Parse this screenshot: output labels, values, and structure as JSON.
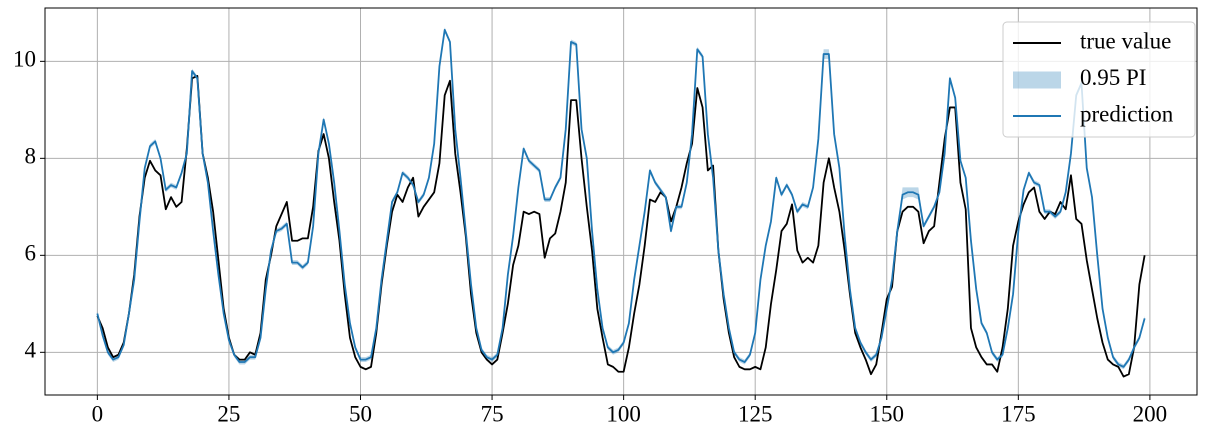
{
  "chart_data": {
    "type": "line",
    "x": [
      0,
      1,
      2,
      3,
      4,
      5,
      6,
      7,
      8,
      9,
      10,
      11,
      12,
      13,
      14,
      15,
      16,
      17,
      18,
      19,
      20,
      21,
      22,
      23,
      24,
      25,
      26,
      27,
      28,
      29,
      30,
      31,
      32,
      33,
      34,
      35,
      36,
      37,
      38,
      39,
      40,
      41,
      42,
      43,
      44,
      45,
      46,
      47,
      48,
      49,
      50,
      51,
      52,
      53,
      54,
      55,
      56,
      57,
      58,
      59,
      60,
      61,
      62,
      63,
      64,
      65,
      66,
      67,
      68,
      69,
      70,
      71,
      72,
      73,
      74,
      75,
      76,
      77,
      78,
      79,
      80,
      81,
      82,
      83,
      84,
      85,
      86,
      87,
      88,
      89,
      90,
      91,
      92,
      93,
      94,
      95,
      96,
      97,
      98,
      99,
      100,
      101,
      102,
      103,
      104,
      105,
      106,
      107,
      108,
      109,
      110,
      111,
      112,
      113,
      114,
      115,
      116,
      117,
      118,
      119,
      120,
      121,
      122,
      123,
      124,
      125,
      126,
      127,
      128,
      129,
      130,
      131,
      132,
      133,
      134,
      135,
      136,
      137,
      138,
      139,
      140,
      141,
      142,
      143,
      144,
      145,
      146,
      147,
      148,
      149,
      150,
      151,
      152,
      153,
      154,
      155,
      156,
      157,
      158,
      159,
      160,
      161,
      162,
      163,
      164,
      165,
      166,
      167,
      168,
      169,
      170,
      171,
      172,
      173,
      174,
      175,
      176,
      177,
      178,
      179,
      180,
      181,
      182,
      183,
      184,
      185,
      186,
      187,
      188,
      189,
      190,
      191,
      192,
      193,
      194,
      195,
      196,
      197,
      198,
      199
    ],
    "series": [
      {
        "name": "true value",
        "color": "#000000",
        "values": [
          4.75,
          4.5,
          4.1,
          3.9,
          3.95,
          4.2,
          4.8,
          5.6,
          6.8,
          7.6,
          7.95,
          7.75,
          7.65,
          6.95,
          7.2,
          7.0,
          7.1,
          8.2,
          9.65,
          9.7,
          8.1,
          7.6,
          6.9,
          5.9,
          4.9,
          4.3,
          3.95,
          3.85,
          3.85,
          4.0,
          3.95,
          4.4,
          5.5,
          6.0,
          6.6,
          6.85,
          7.1,
          6.3,
          6.3,
          6.35,
          6.35,
          7.0,
          8.15,
          8.5,
          8.0,
          7.1,
          6.3,
          5.2,
          4.3,
          3.9,
          3.7,
          3.65,
          3.7,
          4.4,
          5.4,
          6.2,
          6.9,
          7.25,
          7.1,
          7.4,
          7.6,
          6.8,
          7.0,
          7.15,
          7.3,
          7.9,
          9.3,
          9.6,
          8.1,
          7.3,
          6.4,
          5.2,
          4.4,
          4.0,
          3.85,
          3.75,
          3.85,
          4.4,
          5.0,
          5.8,
          6.2,
          6.9,
          6.85,
          6.9,
          6.85,
          5.95,
          6.35,
          6.45,
          6.9,
          7.5,
          9.2,
          9.2,
          8.0,
          7.0,
          6.1,
          4.9,
          4.3,
          3.75,
          3.7,
          3.6,
          3.6,
          4.1,
          4.8,
          5.4,
          6.2,
          7.15,
          7.1,
          7.3,
          7.2,
          6.7,
          7.0,
          7.4,
          7.9,
          8.3,
          9.45,
          9.05,
          7.75,
          7.85,
          6.1,
          5.1,
          4.4,
          3.9,
          3.7,
          3.65,
          3.65,
          3.7,
          3.65,
          4.1,
          5.0,
          5.7,
          6.5,
          6.65,
          7.05,
          6.1,
          5.85,
          5.95,
          5.85,
          6.2,
          7.5,
          8.0,
          7.4,
          6.9,
          6.1,
          5.2,
          4.4,
          4.1,
          3.85,
          3.55,
          3.75,
          4.4,
          5.1,
          5.35,
          6.5,
          6.9,
          7.0,
          7.0,
          6.9,
          6.25,
          6.5,
          6.6,
          7.5,
          8.4,
          9.05,
          9.05,
          7.5,
          6.95,
          4.5,
          4.1,
          3.9,
          3.75,
          3.75,
          3.6,
          4.1,
          4.9,
          6.2,
          6.7,
          7.05,
          7.3,
          7.4,
          6.9,
          6.75,
          6.9,
          6.85,
          7.1,
          6.95,
          7.65,
          6.75,
          6.65,
          5.9,
          5.3,
          4.7,
          4.2,
          3.85,
          3.75,
          3.7,
          3.5,
          3.55,
          4.1,
          5.4,
          6.0
        ]
      },
      {
        "name": "prediction",
        "color": "#1f77b4",
        "values": [
          4.8,
          4.35,
          4.0,
          3.85,
          3.9,
          4.15,
          4.8,
          5.5,
          6.7,
          7.8,
          8.25,
          8.35,
          8.0,
          7.35,
          7.45,
          7.4,
          7.7,
          8.1,
          9.8,
          9.65,
          8.1,
          7.5,
          6.5,
          5.6,
          4.8,
          4.25,
          3.95,
          3.8,
          3.8,
          3.9,
          3.9,
          4.3,
          5.3,
          6.1,
          6.5,
          6.55,
          6.65,
          5.85,
          5.85,
          5.75,
          5.85,
          6.6,
          8.1,
          8.8,
          8.3,
          7.5,
          6.5,
          5.4,
          4.6,
          4.1,
          3.85,
          3.85,
          3.9,
          4.5,
          5.5,
          6.3,
          7.1,
          7.3,
          7.7,
          7.6,
          7.45,
          7.1,
          7.25,
          7.6,
          8.3,
          9.9,
          10.65,
          10.4,
          8.6,
          7.6,
          6.5,
          5.4,
          4.5,
          4.05,
          3.9,
          3.85,
          3.95,
          4.5,
          5.6,
          6.4,
          7.4,
          8.2,
          7.95,
          7.85,
          7.75,
          7.15,
          7.15,
          7.4,
          7.6,
          8.6,
          10.4,
          10.35,
          8.6,
          8.0,
          6.5,
          5.3,
          4.5,
          4.1,
          4.0,
          4.05,
          4.2,
          4.6,
          5.5,
          6.2,
          6.9,
          7.75,
          7.5,
          7.35,
          7.2,
          6.5,
          7.0,
          7.0,
          7.5,
          8.5,
          10.25,
          10.1,
          8.5,
          7.6,
          6.1,
          5.2,
          4.5,
          4.0,
          3.85,
          3.8,
          3.95,
          4.4,
          5.5,
          6.2,
          6.7,
          7.6,
          7.25,
          7.45,
          7.25,
          6.9,
          7.05,
          7.0,
          7.4,
          8.4,
          10.15,
          10.15,
          8.5,
          7.8,
          6.4,
          5.3,
          4.5,
          4.2,
          4.0,
          3.85,
          3.95,
          4.3,
          4.9,
          5.5,
          6.5,
          7.25,
          7.3,
          7.3,
          7.25,
          6.6,
          6.8,
          7.0,
          7.3,
          8.1,
          9.65,
          9.25,
          7.95,
          7.6,
          6.3,
          5.3,
          4.6,
          4.4,
          4.0,
          3.85,
          3.95,
          4.5,
          5.2,
          6.5,
          7.35,
          7.7,
          7.5,
          7.45,
          6.9,
          6.9,
          6.8,
          6.9,
          7.3,
          8.1,
          9.3,
          9.55,
          7.8,
          7.2,
          6.0,
          4.9,
          4.3,
          3.9,
          3.75,
          3.7,
          3.85,
          4.1,
          4.3,
          4.7
        ]
      }
    ],
    "band": {
      "name": "0.95 PI",
      "color": "#1f77b4",
      "lower": [
        4.75,
        4.3,
        3.95,
        3.8,
        3.85,
        4.1,
        4.75,
        5.45,
        6.65,
        7.75,
        8.2,
        8.3,
        7.95,
        7.3,
        7.4,
        7.35,
        7.65,
        8.05,
        9.75,
        9.6,
        8.05,
        7.45,
        6.45,
        5.55,
        4.75,
        4.2,
        3.9,
        3.75,
        3.75,
        3.85,
        3.85,
        4.25,
        5.25,
        6.05,
        6.45,
        6.5,
        6.6,
        5.8,
        5.8,
        5.7,
        5.8,
        6.55,
        8.05,
        8.75,
        8.25,
        7.45,
        6.45,
        5.35,
        4.55,
        4.05,
        3.8,
        3.8,
        3.85,
        4.45,
        5.45,
        6.25,
        7.05,
        7.25,
        7.65,
        7.55,
        7.4,
        7.05,
        7.2,
        7.55,
        8.25,
        9.85,
        10.6,
        10.35,
        8.55,
        7.55,
        6.45,
        5.35,
        4.45,
        4.0,
        3.85,
        3.8,
        3.9,
        4.45,
        5.55,
        6.35,
        7.35,
        8.15,
        7.9,
        7.8,
        7.7,
        7.1,
        7.1,
        7.35,
        7.55,
        8.55,
        10.35,
        10.3,
        8.55,
        7.95,
        6.45,
        5.25,
        4.45,
        4.05,
        3.95,
        4.0,
        4.15,
        4.55,
        5.45,
        6.15,
        6.85,
        7.7,
        7.45,
        7.3,
        7.15,
        6.45,
        6.95,
        6.95,
        7.45,
        8.45,
        10.2,
        10.05,
        8.45,
        7.55,
        6.05,
        5.15,
        4.45,
        3.95,
        3.8,
        3.75,
        3.9,
        4.35,
        5.45,
        6.15,
        6.65,
        7.55,
        7.2,
        7.4,
        7.2,
        6.85,
        7.0,
        6.95,
        7.35,
        8.35,
        10.05,
        10.05,
        8.45,
        7.75,
        6.35,
        5.25,
        4.45,
        4.15,
        3.95,
        3.8,
        3.9,
        4.25,
        4.85,
        5.45,
        6.45,
        7.15,
        7.2,
        7.2,
        7.15,
        6.55,
        6.75,
        6.95,
        7.25,
        8.05,
        9.6,
        9.2,
        7.9,
        7.55,
        6.25,
        5.25,
        4.55,
        4.35,
        3.95,
        3.8,
        3.9,
        4.45,
        5.15,
        6.45,
        7.3,
        7.65,
        7.45,
        7.4,
        6.85,
        6.85,
        6.75,
        6.85,
        7.25,
        8.05,
        9.25,
        9.5,
        7.75,
        7.15,
        5.95,
        4.85,
        4.25,
        3.85,
        3.7,
        3.65,
        3.8,
        4.05,
        4.25,
        4.65
      ],
      "upper": [
        4.85,
        4.4,
        4.05,
        3.9,
        3.95,
        4.2,
        4.85,
        5.55,
        6.75,
        7.85,
        8.3,
        8.4,
        8.05,
        7.4,
        7.5,
        7.45,
        7.75,
        8.15,
        9.85,
        9.7,
        8.15,
        7.55,
        6.55,
        5.65,
        4.85,
        4.3,
        4.0,
        3.85,
        3.85,
        3.95,
        3.95,
        4.35,
        5.35,
        6.15,
        6.55,
        6.6,
        6.7,
        5.9,
        5.9,
        5.8,
        5.9,
        6.65,
        8.15,
        8.85,
        8.35,
        7.55,
        6.55,
        5.45,
        4.65,
        4.15,
        3.9,
        3.9,
        3.95,
        4.55,
        5.55,
        6.35,
        7.15,
        7.35,
        7.75,
        7.65,
        7.5,
        7.15,
        7.3,
        7.65,
        8.35,
        9.95,
        10.7,
        10.45,
        8.65,
        7.65,
        6.55,
        5.45,
        4.55,
        4.1,
        3.95,
        3.9,
        4.0,
        4.55,
        5.65,
        6.45,
        7.45,
        8.25,
        8.0,
        7.9,
        7.8,
        7.2,
        7.2,
        7.45,
        7.65,
        8.65,
        10.45,
        10.4,
        8.65,
        8.05,
        6.55,
        5.35,
        4.55,
        4.15,
        4.05,
        4.1,
        4.25,
        4.65,
        5.55,
        6.25,
        6.95,
        7.8,
        7.55,
        7.4,
        7.25,
        6.55,
        7.05,
        7.05,
        7.55,
        8.55,
        10.3,
        10.15,
        8.55,
        7.65,
        6.15,
        5.25,
        4.55,
        4.05,
        3.9,
        3.85,
        4.0,
        4.45,
        5.55,
        6.25,
        6.75,
        7.65,
        7.3,
        7.5,
        7.3,
        6.95,
        7.1,
        7.05,
        7.45,
        8.45,
        10.25,
        10.25,
        8.55,
        7.85,
        6.45,
        5.35,
        4.55,
        4.25,
        4.05,
        3.9,
        4.0,
        4.35,
        4.95,
        5.55,
        6.55,
        7.4,
        7.4,
        7.4,
        7.4,
        6.65,
        6.85,
        7.05,
        7.35,
        8.15,
        9.7,
        9.3,
        8.0,
        7.65,
        6.35,
        5.35,
        4.65,
        4.45,
        4.05,
        3.9,
        4.0,
        4.55,
        5.25,
        6.55,
        7.4,
        7.75,
        7.55,
        7.5,
        6.95,
        6.95,
        6.85,
        6.95,
        7.35,
        8.15,
        9.35,
        9.6,
        7.85,
        7.25,
        6.05,
        4.95,
        4.35,
        3.95,
        3.8,
        3.75,
        3.9,
        4.15,
        4.35,
        4.75
      ]
    },
    "xlim": [
      -9.95,
      208.95
    ],
    "ylim": [
      3.12,
      11.1
    ],
    "xticks": [
      0,
      25,
      50,
      75,
      100,
      125,
      150,
      175,
      200
    ],
    "yticks": [
      4,
      6,
      8,
      10
    ],
    "grid": true,
    "legend": "upper right"
  }
}
